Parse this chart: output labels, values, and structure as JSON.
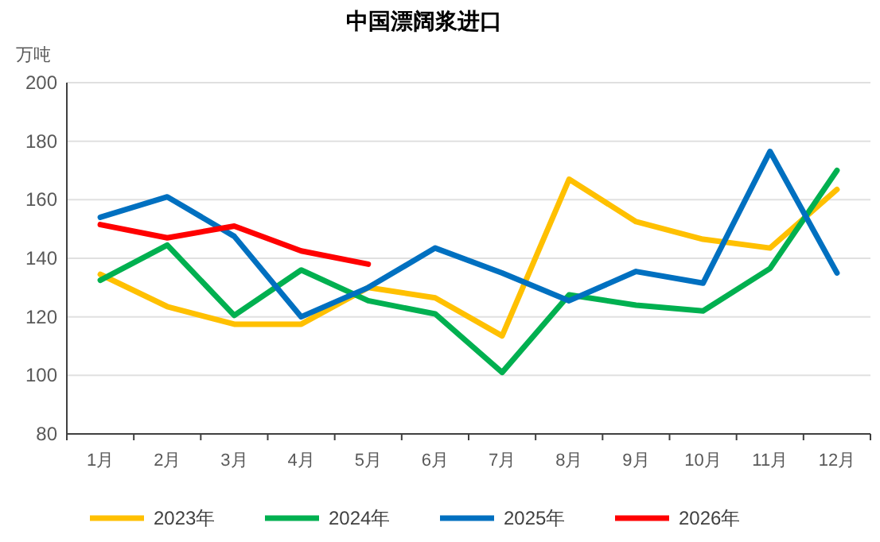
{
  "chart_data": {
    "type": "line",
    "title": "中国漂阔浆进口",
    "ylabel": "万吨",
    "categories": [
      "1月",
      "2月",
      "3月",
      "4月",
      "5月",
      "6月",
      "7月",
      "8月",
      "9月",
      "10月",
      "11月",
      "12月"
    ],
    "series": [
      {
        "name": "2023年",
        "color": "#ffc000",
        "values": [
          134.5,
          123.5,
          117.5,
          117.5,
          130,
          126.5,
          113.5,
          167,
          152.5,
          146.5,
          143.5,
          163.5
        ]
      },
      {
        "name": "2024年",
        "color": "#00b050",
        "values": [
          132.5,
          144.5,
          120.5,
          136,
          125.5,
          121,
          101,
          127.5,
          124,
          122,
          136.5,
          170
        ]
      },
      {
        "name": "2025年",
        "color": "#0070c0",
        "values": [
          154,
          161,
          147.5,
          120,
          130,
          143.5,
          135,
          125.5,
          135.5,
          131.5,
          176.5,
          135
        ]
      },
      {
        "name": "2026年",
        "color": "#ff0000",
        "values": [
          151.5,
          147,
          151,
          142.5,
          138,
          null,
          null,
          null,
          null,
          null,
          null,
          null
        ]
      }
    ],
    "ylim": [
      80,
      200
    ],
    "yticks": [
      80,
      100,
      120,
      140,
      160,
      180,
      200
    ],
    "grid": "y",
    "legend": "bottom",
    "marker": "none",
    "line_style": "solid"
  }
}
